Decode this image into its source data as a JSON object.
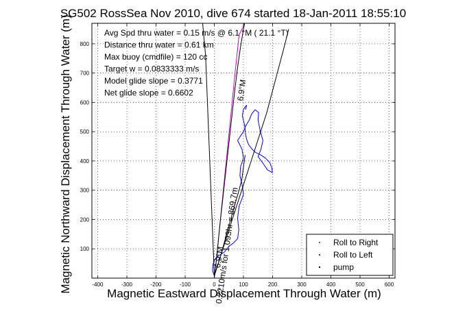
{
  "chart_data": {
    "type": "line",
    "title": "SG502 RossSea Nov 2010, dive 674 started 18-Jan-2011 18:55:10",
    "xlabel": "Magnetic Eastward Displacement Through Water (m)",
    "ylabel": "Magnetic Northward Displacement Through Water (m)",
    "xlim": [
      -420,
      620
    ],
    "ylim": [
      0,
      870
    ],
    "xticks": [
      -400,
      -300,
      -200,
      -100,
      0,
      100,
      200,
      300,
      400,
      500,
      600
    ],
    "yticks": [
      100,
      200,
      300,
      400,
      500,
      600,
      700,
      800
    ],
    "grid": true,
    "legend_position": "bottom-right",
    "annotations": [
      "Avg Spd thru water =  0.15 m/s @   6.1   °M ( 21.1 °T)",
      "Distance thru water =  0.61 km",
      "Max buoy (cmdfile) = 120 cc",
      "Target w = 0.0833333 m/s",
      "Model glide slope = 0.3771",
      "Net glide slope = 0.6602"
    ],
    "line_labels": [
      {
        "text": "6.9°M",
        "x": 103,
        "y": 640,
        "rotation": -82
      },
      {
        "text": "0.2210m/s for 1.093hr = 869.7m",
        "x": 52,
        "y": 110,
        "rotation": -82
      },
      {
        "text": "6.9°M",
        "x": 25,
        "y": 70,
        "rotation": -82
      }
    ],
    "legend": [
      {
        "label": "Roll to Right",
        "color": "#00aa00"
      },
      {
        "label": "Roll to Left",
        "color": "#dd0000"
      },
      {
        "label": "pump",
        "color": "#000000"
      }
    ],
    "series": [
      {
        "color": "#0000ff",
        "x": [
          0,
          -6,
          -5,
          0,
          8,
          18,
          28,
          36,
          43,
          52,
          66,
          80,
          84,
          80,
          85,
          100,
          95,
          88,
          90,
          100,
          95,
          80,
          100,
          108,
          120,
          128,
          140,
          152,
          150,
          158,
          167,
          160,
          150,
          165,
          182,
          199,
          198,
          190,
          175,
          160,
          150,
          140,
          130,
          118,
          112,
          107,
          106,
          102,
          96,
          100,
          106,
          111,
          107
        ],
        "y": [
          8,
          25,
          45,
          60,
          72,
          78,
          85,
          90,
          100,
          110,
          120,
          135,
          165,
          205,
          245,
          285,
          320,
          350,
          380,
          410,
          440,
          470,
          500,
          520,
          540,
          560,
          575,
          565,
          540,
          500,
          470,
          440,
          415,
          395,
          370,
          360,
          375,
          395,
          410,
          420,
          425,
          430,
          440,
          455,
          470,
          490,
          510,
          530,
          555,
          575,
          585,
          590,
          575
        ]
      },
      {
        "color": "#000000",
        "x": [
          0,
          20,
          45,
          70,
          85,
          95,
          100,
          106
        ],
        "y": [
          8,
          70,
          160,
          250,
          300,
          340,
          380,
          420
        ]
      },
      {
        "color": "#cc00cc",
        "x": [
          0,
          10,
          25,
          40,
          55,
          70,
          85,
          100,
          104
        ],
        "y": [
          0,
          90,
          240,
          390,
          540,
          690,
          830,
          860,
          870
        ]
      },
      {
        "color": "#000000",
        "x": [
          0,
          5,
          12,
          20,
          30,
          40,
          50,
          60,
          70,
          80,
          90,
          100,
          104
        ],
        "y": [
          0,
          40,
          110,
          190,
          280,
          370,
          460,
          550,
          640,
          720,
          790,
          850,
          870
        ]
      },
      {
        "color": "#000000",
        "x": [
          0,
          -30,
          -40
        ],
        "y": [
          8,
          760,
          870
        ]
      },
      {
        "color": "#000000",
        "x": [
          0,
          60,
          120,
          180,
          240,
          255
        ],
        "y": [
          8,
          195,
          380,
          565,
          790,
          850
        ]
      }
    ]
  }
}
